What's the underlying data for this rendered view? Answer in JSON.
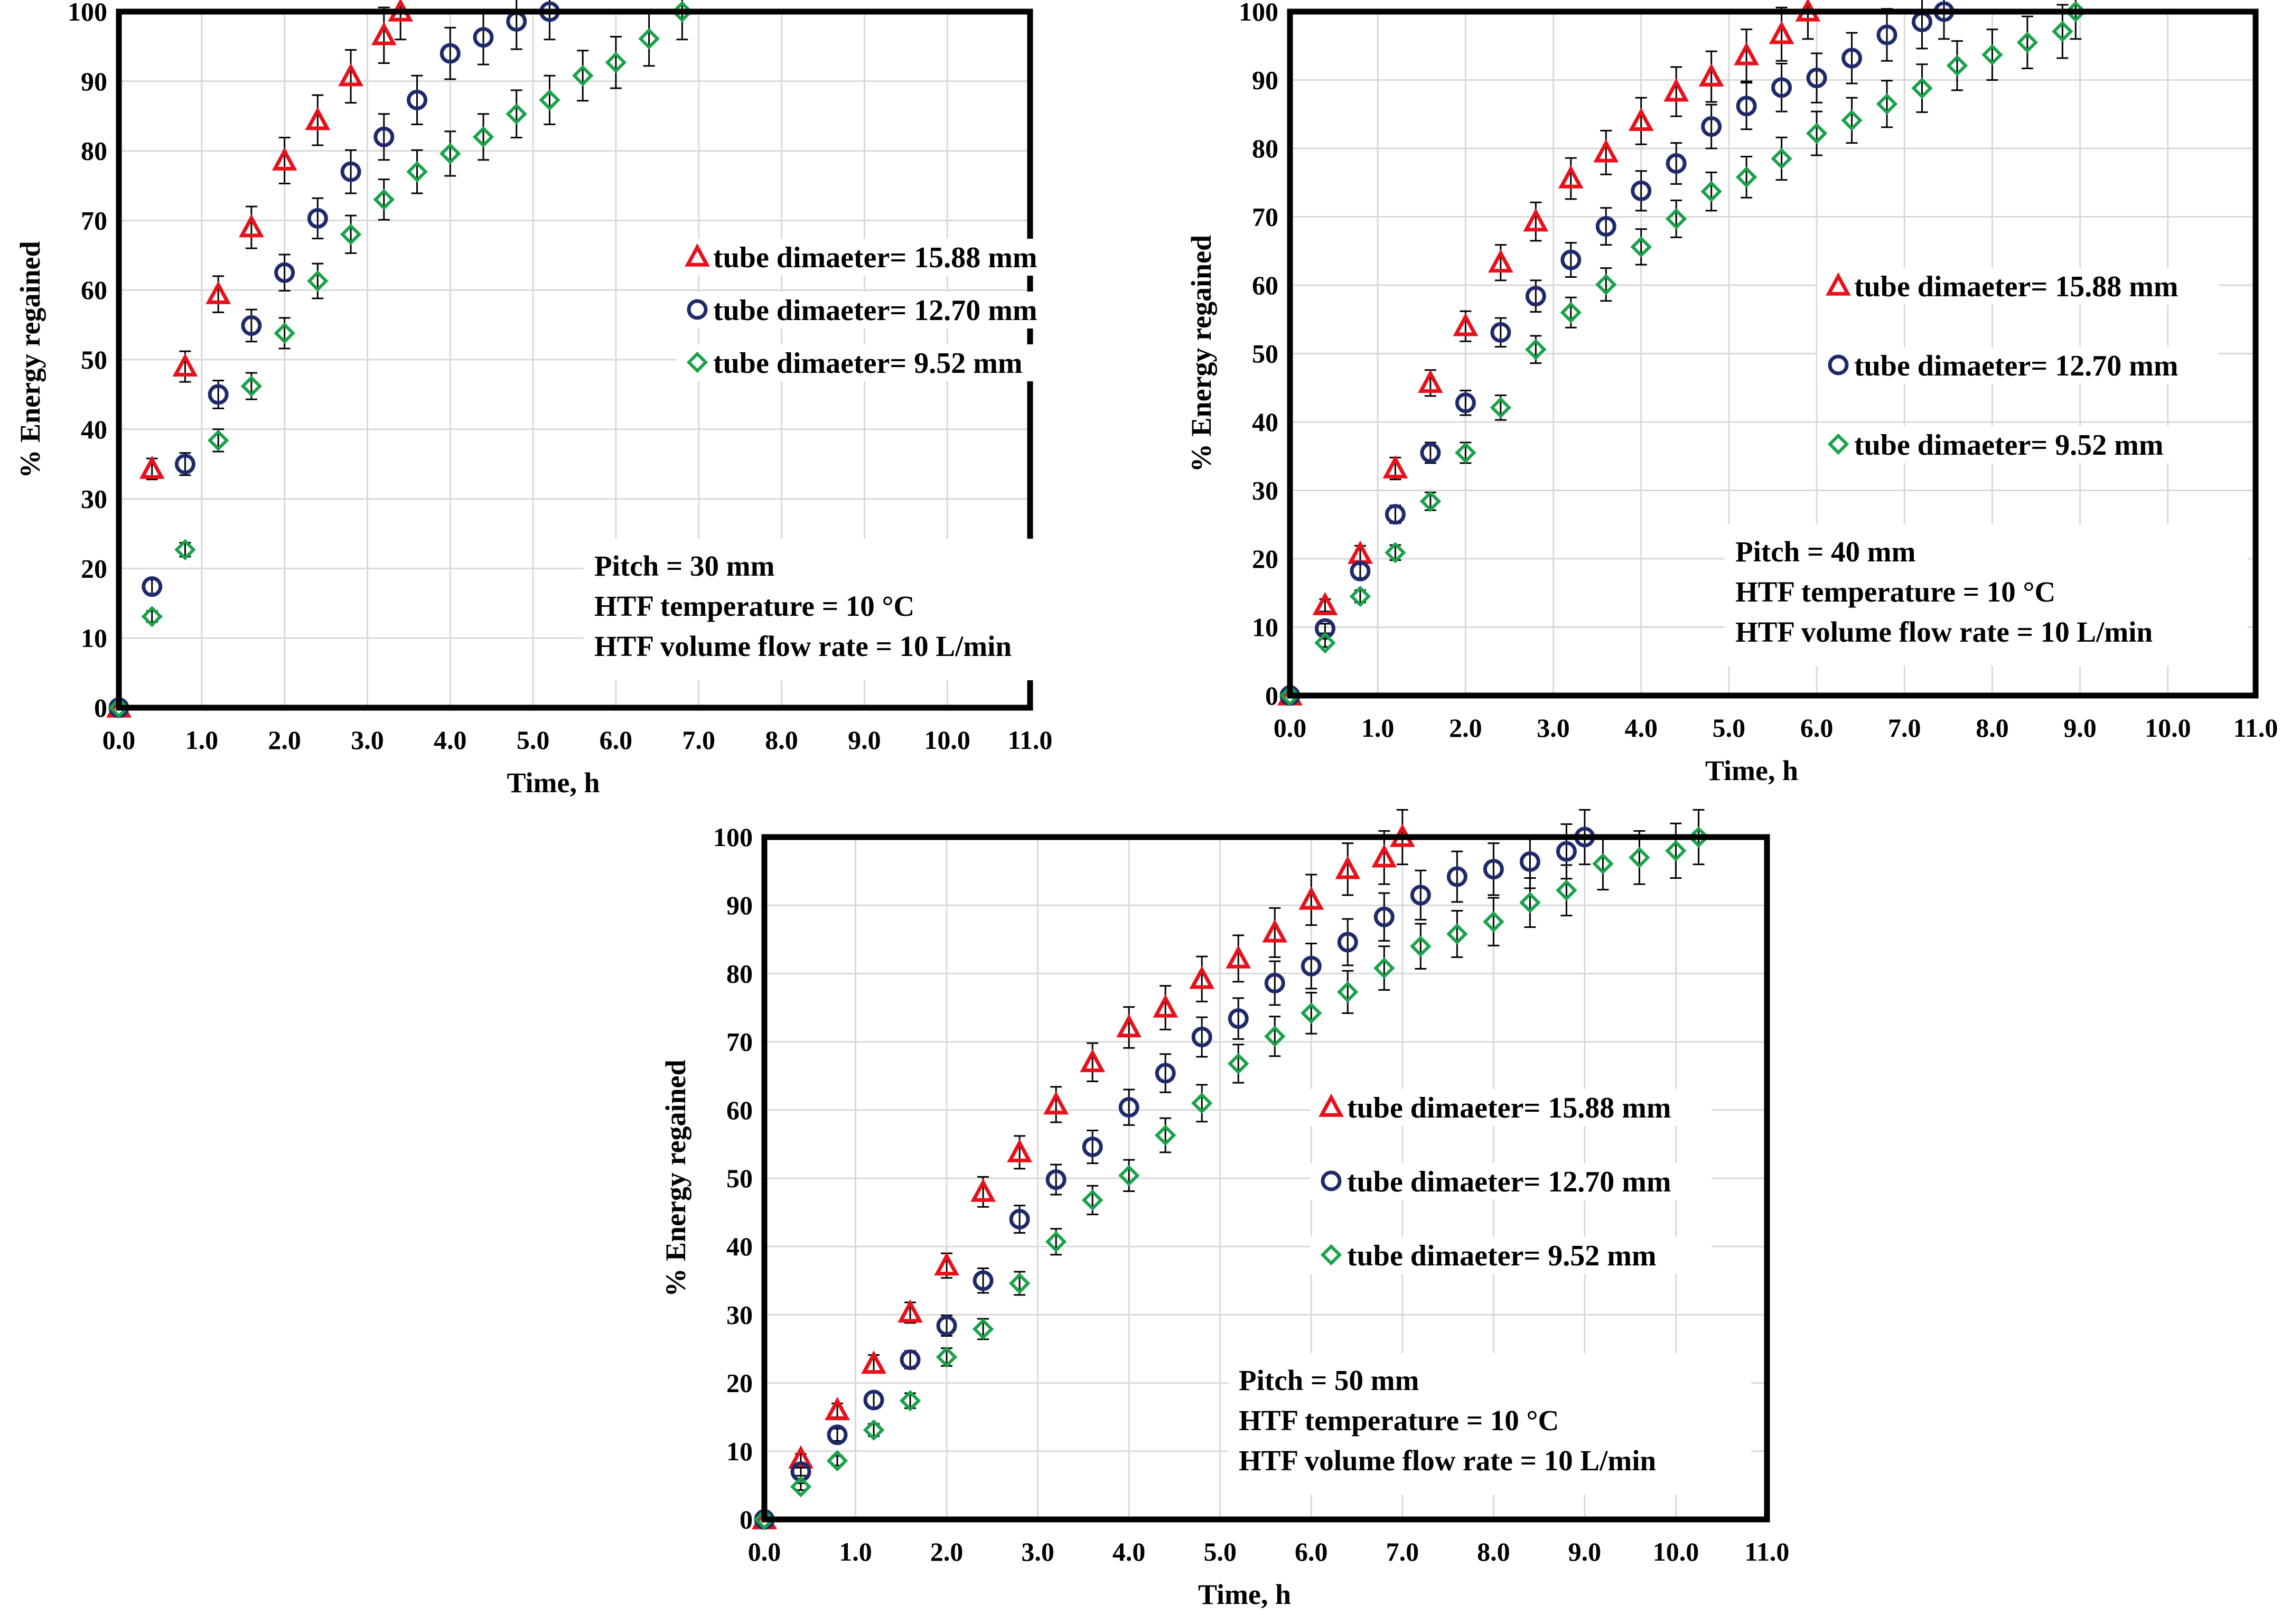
{
  "chart_data": [
    {
      "id": "pitch-30",
      "type": "scatter",
      "xlabel": "Time, h",
      "ylabel": "% Energy regained",
      "xlim": [
        0,
        11
      ],
      "ylim": [
        0,
        100
      ],
      "xticks": [
        "0.0",
        "1.0",
        "2.0",
        "3.0",
        "4.0",
        "5.0",
        "6.0",
        "7.0",
        "8.0",
        "9.0",
        "10.0",
        "11.0"
      ],
      "yticks": [
        "0",
        "10",
        "20",
        "30",
        "40",
        "50",
        "60",
        "70",
        "80",
        "90",
        "100"
      ],
      "legend_position": "right",
      "legend": [
        "tube dimaeter= 15.88 mm",
        "tube dimaeter= 12.70 mm",
        "tube dimaeter= 9.52 mm"
      ],
      "annotation": [
        "Pitch  = 30 mm",
        "HTF temperature = 10 °C",
        "HTF volume flow rate = 10 L/min"
      ],
      "series": [
        {
          "name": "tube dimaeter= 15.88 mm",
          "marker": "triangle",
          "color": "#e8111b",
          "x": [
            0,
            0.4,
            0.8,
            1.2,
            1.6,
            2.0,
            2.4,
            2.8,
            3.2,
            3.4
          ],
          "y": [
            0,
            34.3,
            49.0,
            59.4,
            69.0,
            78.6,
            84.4,
            90.7,
            96.6,
            100
          ],
          "err": [
            0,
            1.5,
            2.2,
            2.6,
            3.0,
            3.3,
            3.6,
            3.8,
            4.0,
            4.0
          ]
        },
        {
          "name": "tube dimaeter= 12.70 mm",
          "marker": "circle",
          "color": "#1f2a6b",
          "x": [
            0,
            0.4,
            0.8,
            1.2,
            1.6,
            2.0,
            2.4,
            2.8,
            3.2,
            3.6,
            4.0,
            4.4,
            4.8,
            5.2
          ],
          "y": [
            0,
            17.4,
            35.0,
            45.0,
            54.9,
            62.5,
            70.3,
            77.0,
            82.0,
            87.3,
            94.0,
            96.3,
            98.6,
            100
          ],
          "err": [
            0,
            1.0,
            1.6,
            2.0,
            2.3,
            2.6,
            2.9,
            3.1,
            3.3,
            3.5,
            3.7,
            3.9,
            4.0,
            4.0
          ]
        },
        {
          "name": "tube dimaeter= 9.52 mm",
          "marker": "diamond",
          "color": "#1aa24a",
          "x": [
            0,
            0.4,
            0.8,
            1.2,
            1.6,
            2.0,
            2.4,
            2.8,
            3.2,
            3.6,
            4.0,
            4.4,
            4.8,
            5.2,
            5.6,
            6.0,
            6.4,
            6.8
          ],
          "y": [
            0,
            13.1,
            22.7,
            38.4,
            46.2,
            53.8,
            61.3,
            68.0,
            73.0,
            77.0,
            79.6,
            82.0,
            85.3,
            87.3,
            90.8,
            92.7,
            96.1,
            100
          ],
          "err": [
            0,
            0.8,
            1.0,
            1.6,
            1.9,
            2.2,
            2.5,
            2.7,
            2.9,
            3.1,
            3.2,
            3.3,
            3.4,
            3.5,
            3.6,
            3.7,
            3.9,
            4.0
          ]
        }
      ]
    },
    {
      "id": "pitch-40",
      "type": "scatter",
      "xlabel": "Time, h",
      "ylabel": "% Energy regained",
      "xlim": [
        0,
        11
      ],
      "ylim": [
        0,
        100
      ],
      "xticks": [
        "0.0",
        "1.0",
        "2.0",
        "3.0",
        "4.0",
        "5.0",
        "6.0",
        "7.0",
        "8.0",
        "9.0",
        "10.0",
        "11.0"
      ],
      "yticks": [
        "0",
        "10",
        "20",
        "30",
        "40",
        "50",
        "60",
        "70",
        "80",
        "90",
        "100"
      ],
      "legend_position": "right",
      "legend": [
        "tube dimaeter= 15.88 mm",
        "tube dimaeter= 12.70 mm",
        "tube dimaeter= 9.52 mm"
      ],
      "annotation": [
        "Pitch  = 40 mm",
        "HTF temperature = 10 °C",
        "HTF volume flow rate = 10 L/min"
      ],
      "series": [
        {
          "name": "tube dimaeter= 15.88 mm",
          "marker": "triangle",
          "color": "#e8111b",
          "x": [
            0,
            0.4,
            0.8,
            1.2,
            1.6,
            2.0,
            2.4,
            2.8,
            3.2,
            3.6,
            4.0,
            4.4,
            4.8,
            5.2,
            5.6,
            5.9
          ],
          "y": [
            0,
            13.2,
            20.7,
            33.2,
            45.7,
            54.0,
            63.3,
            69.3,
            75.6,
            79.4,
            84.0,
            88.3,
            90.5,
            93.6,
            96.7,
            100
          ],
          "err": [
            0,
            0.9,
            1.2,
            1.6,
            1.9,
            2.2,
            2.6,
            2.8,
            3.0,
            3.2,
            3.4,
            3.6,
            3.7,
            3.8,
            3.9,
            4.0
          ]
        },
        {
          "name": "tube dimaeter= 12.70 mm",
          "marker": "circle",
          "color": "#1f2a6b",
          "x": [
            0,
            0.4,
            0.8,
            1.2,
            1.6,
            2.0,
            2.4,
            2.8,
            3.2,
            3.6,
            4.0,
            4.4,
            4.8,
            5.2,
            5.6,
            6.0,
            6.4,
            6.8,
            7.2,
            7.45
          ],
          "y": [
            0,
            9.8,
            18.2,
            26.5,
            35.5,
            42.8,
            53.1,
            58.4,
            63.7,
            68.6,
            73.8,
            77.8,
            83.2,
            86.2,
            88.9,
            90.3,
            93.2,
            96.6,
            98.5,
            100
          ],
          "err": [
            0,
            0.7,
            1.0,
            1.3,
            1.5,
            1.8,
            2.1,
            2.3,
            2.5,
            2.7,
            2.9,
            3.0,
            3.2,
            3.4,
            3.5,
            3.6,
            3.7,
            3.8,
            3.9,
            4.0
          ]
        },
        {
          "name": "tube dimaeter= 9.52 mm",
          "marker": "diamond",
          "color": "#1aa24a",
          "x": [
            0,
            0.4,
            0.8,
            1.2,
            1.6,
            2.0,
            2.4,
            2.8,
            3.2,
            3.6,
            4.0,
            4.4,
            4.8,
            5.2,
            5.6,
            6.0,
            6.4,
            6.8,
            7.2,
            7.6,
            8.0,
            8.4,
            8.8,
            8.95
          ],
          "y": [
            0,
            7.7,
            14.5,
            20.9,
            28.4,
            35.5,
            42.1,
            50.6,
            56.0,
            60.1,
            65.6,
            69.7,
            73.7,
            75.8,
            78.5,
            82.2,
            84.1,
            86.5,
            88.8,
            92.1,
            93.7,
            95.5,
            97.1,
            100
          ],
          "err": [
            0,
            0.6,
            0.9,
            1.1,
            1.3,
            1.5,
            1.8,
            2.0,
            2.2,
            2.4,
            2.6,
            2.7,
            2.8,
            3.0,
            3.1,
            3.2,
            3.3,
            3.4,
            3.5,
            3.6,
            3.7,
            3.8,
            3.9,
            4.0
          ]
        }
      ]
    },
    {
      "id": "pitch-50",
      "type": "scatter",
      "xlabel": "Time, h",
      "ylabel": "% Energy regained",
      "xlim": [
        0,
        11
      ],
      "ylim": [
        0,
        100
      ],
      "xticks": [
        "0.0",
        "1.0",
        "2.0",
        "3.0",
        "4.0",
        "5.0",
        "6.0",
        "7.0",
        "8.0",
        "9.0",
        "10.0",
        "11.0"
      ],
      "yticks": [
        "0",
        "10",
        "20",
        "30",
        "40",
        "50",
        "60",
        "70",
        "80",
        "90",
        "100"
      ],
      "legend_position": "right",
      "legend": [
        "tube dimaeter= 15.88 mm",
        "tube dimaeter= 12.70 mm",
        "tube dimaeter= 9.52 mm"
      ],
      "annotation": [
        "Pitch  = 50 mm",
        "HTF temperature = 10 °C",
        "HTF volume flow rate = 10 L/min"
      ],
      "series": [
        {
          "name": "tube dimaeter= 15.88 mm",
          "marker": "triangle",
          "color": "#e8111b",
          "x": [
            0,
            0.4,
            0.8,
            1.2,
            1.6,
            2.0,
            2.4,
            2.8,
            3.2,
            3.6,
            4.0,
            4.4,
            4.8,
            5.2,
            5.6,
            6.0,
            6.4,
            6.8,
            7.0
          ],
          "y": [
            0,
            8.9,
            16.0,
            22.8,
            30.3,
            37.2,
            48.0,
            53.8,
            60.8,
            67.0,
            72.1,
            75.0,
            79.2,
            82.2,
            86.0,
            90.8,
            95.3,
            97.0,
            100
          ],
          "err": [
            0,
            0.7,
            1.0,
            1.3,
            1.5,
            1.8,
            2.2,
            2.4,
            2.6,
            2.8,
            3.0,
            3.2,
            3.3,
            3.4,
            3.6,
            3.7,
            3.8,
            3.9,
            4.0
          ]
        },
        {
          "name": "tube dimaeter= 12.70 mm",
          "marker": "circle",
          "color": "#1f2a6b",
          "x": [
            0,
            0.4,
            0.8,
            1.2,
            1.6,
            2.0,
            2.4,
            2.8,
            3.2,
            3.6,
            4.0,
            4.4,
            4.8,
            5.2,
            5.6,
            6.0,
            6.4,
            6.8,
            7.2,
            7.6,
            8.0,
            8.4,
            8.8,
            9.0
          ],
          "y": [
            0,
            7.0,
            12.4,
            17.5,
            23.4,
            28.4,
            35.0,
            44.0,
            49.8,
            54.6,
            60.4,
            65.4,
            70.7,
            73.4,
            78.6,
            81.1,
            84.6,
            88.3,
            91.5,
            94.2,
            95.3,
            96.4,
            97.9,
            100
          ],
          "err": [
            0,
            0.6,
            0.9,
            1.1,
            1.3,
            1.5,
            1.8,
            2.0,
            2.2,
            2.4,
            2.6,
            2.8,
            2.9,
            3.0,
            3.2,
            3.3,
            3.4,
            3.5,
            3.6,
            3.7,
            3.8,
            3.9,
            4.0,
            4.0
          ]
        },
        {
          "name": "tube dimaeter= 9.52 mm",
          "marker": "diamond",
          "color": "#1aa24a",
          "x": [
            0,
            0.4,
            0.8,
            1.2,
            1.6,
            2.0,
            2.4,
            2.8,
            3.2,
            3.6,
            4.0,
            4.4,
            4.8,
            5.2,
            5.6,
            6.0,
            6.4,
            6.8,
            7.2,
            7.6,
            8.0,
            8.4,
            8.8,
            9.2,
            9.6,
            10.0,
            10.25
          ],
          "y": [
            0,
            4.8,
            8.6,
            13.1,
            17.4,
            23.8,
            27.9,
            34.6,
            40.7,
            46.8,
            50.4,
            56.3,
            61.0,
            66.8,
            70.8,
            74.2,
            77.3,
            80.8,
            84.0,
            85.8,
            87.6,
            90.4,
            92.2,
            96.1,
            97.0,
            98.0,
            100
          ],
          "err": [
            0,
            0.5,
            0.7,
            0.9,
            1.1,
            1.3,
            1.5,
            1.7,
            1.9,
            2.1,
            2.3,
            2.5,
            2.7,
            2.8,
            2.9,
            3.0,
            3.1,
            3.2,
            3.3,
            3.4,
            3.5,
            3.6,
            3.7,
            3.8,
            3.9,
            4.0,
            4.0
          ]
        }
      ]
    }
  ]
}
